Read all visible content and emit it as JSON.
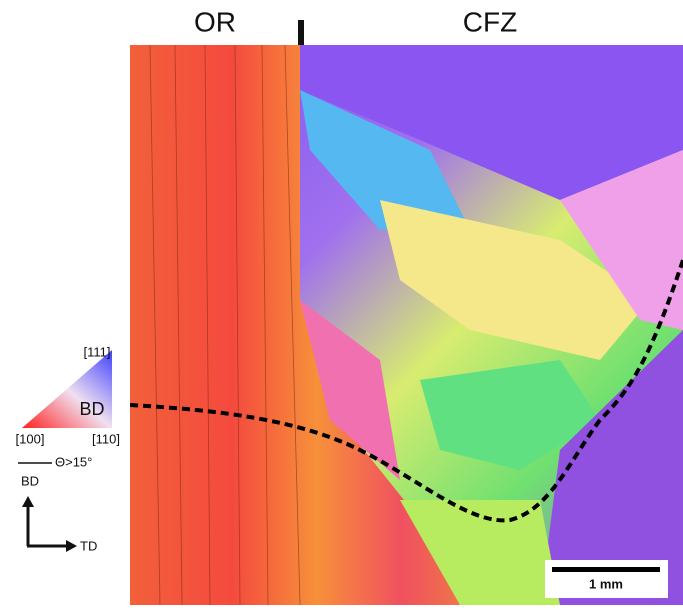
{
  "header": {
    "left_label": "OR",
    "right_label": "CFZ"
  },
  "legend": {
    "corner_top": "[111]",
    "center": "BD",
    "corner_left": "[100]",
    "corner_right": "[110]",
    "boundary": "Θ>15°"
  },
  "axes": {
    "vertical": "BD",
    "horizontal": "TD"
  },
  "scale_bar": "1 mm"
}
